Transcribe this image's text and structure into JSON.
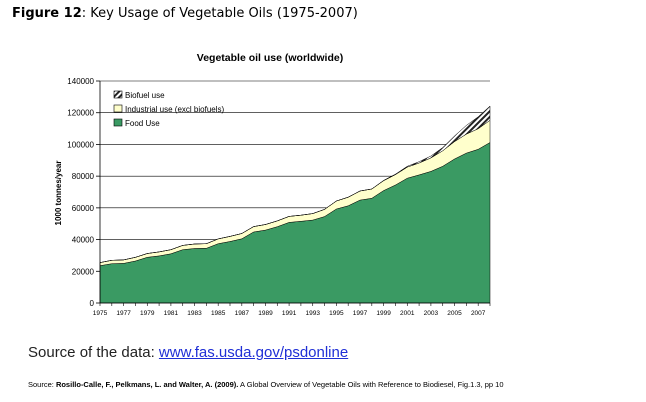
{
  "caption": {
    "figure_label": "Figure 12",
    "title": ": Key Usage of Vegetable Oils (1975-2007)"
  },
  "chart_data": {
    "type": "area",
    "stacked": true,
    "title": "Vegetable oil use (worldwide)",
    "ylabel": "1000 tonnes/year",
    "xlabel": "",
    "ylim": [
      0,
      140000
    ],
    "yticks": [
      0,
      20000,
      40000,
      60000,
      80000,
      100000,
      120000,
      140000
    ],
    "ytick_labels": [
      "0",
      "20000",
      "40000",
      "60000",
      "80000",
      "100000",
      "120000",
      "140000"
    ],
    "xlim": [
      1975,
      2008
    ],
    "xticks": [
      1975,
      1977,
      1979,
      1981,
      1983,
      1985,
      1987,
      1989,
      1991,
      1993,
      1995,
      1997,
      1999,
      2001,
      2003,
      2005,
      2007
    ],
    "x": [
      1975,
      1976,
      1977,
      1978,
      1979,
      1980,
      1981,
      1982,
      1983,
      1984,
      1985,
      1986,
      1987,
      1988,
      1989,
      1990,
      1991,
      1992,
      1993,
      1994,
      1995,
      1996,
      1997,
      1998,
      1999,
      2000,
      2001,
      2002,
      2003,
      2004,
      2005,
      2006,
      2007,
      2008
    ],
    "grid": "horizontal",
    "legend_position": "top-left",
    "series": [
      {
        "name": "Food Use",
        "color": "#3a9a63",
        "values": [
          23500,
          24800,
          25000,
          26500,
          28800,
          29700,
          31000,
          33600,
          34400,
          34500,
          37400,
          38800,
          40500,
          44800,
          46000,
          48100,
          50800,
          51500,
          52300,
          54500,
          59300,
          61300,
          64900,
          66000,
          70900,
          74400,
          78700,
          80800,
          83000,
          86200,
          90800,
          94500,
          96900,
          101200
        ]
      },
      {
        "name": "Industrial use (excl biofuels)",
        "color": "#ffffcc",
        "values": [
          2000,
          2100,
          2200,
          2300,
          2400,
          2500,
          2600,
          2700,
          2800,
          2900,
          3000,
          3200,
          3300,
          3400,
          3500,
          3700,
          3800,
          3900,
          4100,
          4500,
          5000,
          5400,
          5700,
          5900,
          6200,
          6600,
          7000,
          7500,
          8500,
          9800,
          11000,
          12000,
          13000,
          14000
        ]
      },
      {
        "name": "Biofuel use",
        "color": "#222222",
        "values": [
          0,
          0,
          0,
          0,
          0,
          0,
          0,
          0,
          0,
          0,
          0,
          0,
          0,
          0,
          0,
          0,
          0,
          0,
          0,
          0,
          0,
          0,
          0,
          0,
          200,
          300,
          500,
          800,
          1200,
          2000,
          3500,
          5500,
          7500,
          9000
        ]
      }
    ]
  },
  "source": {
    "prefix": "Source of the data: ",
    "link_text": "www.fas.usda.gov/psdonline"
  },
  "citation": {
    "prefix": "Source: ",
    "authors": "Rosillo-Calle, F., Pelkmans, L. and Walter, A. (2009).",
    "rest": " A Global Overview of Vegetable Oils with Reference to Biodiesel, Fig.1.3, pp 10"
  }
}
